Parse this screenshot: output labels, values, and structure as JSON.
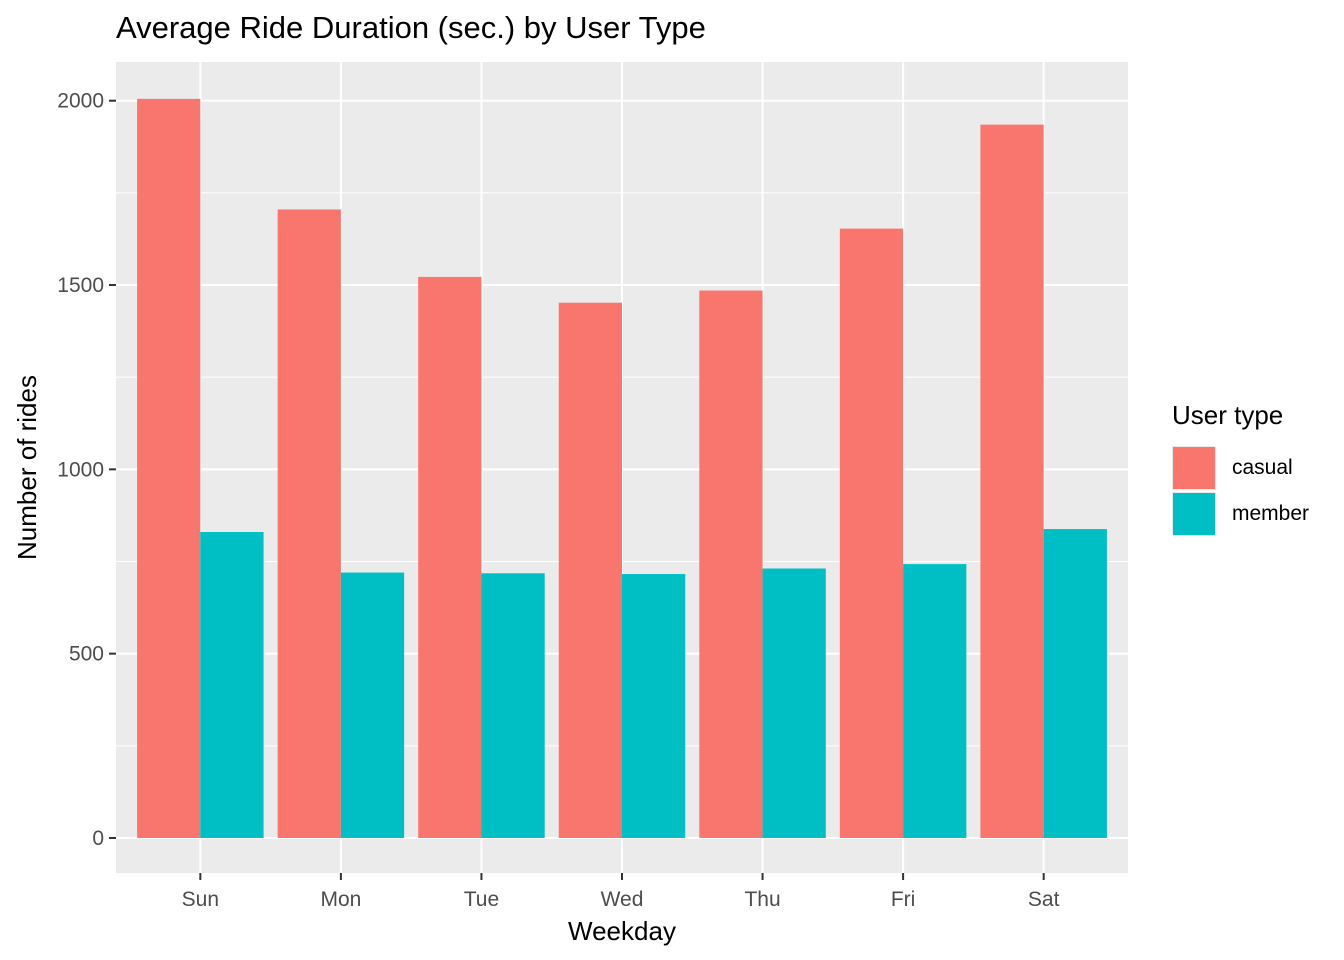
{
  "chart_data": {
    "type": "bar",
    "title": "Average Ride Duration (sec.) by User Type",
    "xlabel": "Weekday",
    "ylabel": "Number of rides",
    "categories": [
      "Sun",
      "Mon",
      "Tue",
      "Wed",
      "Thu",
      "Fri",
      "Sat"
    ],
    "series": [
      {
        "name": "casual",
        "color": "#F8766D",
        "values": [
          2005,
          1705,
          1522,
          1452,
          1485,
          1653,
          1935
        ]
      },
      {
        "name": "member",
        "color": "#00BFC4",
        "values": [
          830,
          720,
          718,
          716,
          731,
          743,
          838
        ]
      }
    ],
    "yticks": [
      0,
      500,
      1000,
      1500,
      2000
    ],
    "ylim": [
      -95,
      2105
    ],
    "grid": true,
    "legend": {
      "title": "User type",
      "position": "right"
    },
    "panel_background": "#EBEBEB",
    "grid_color": "#FFFFFF"
  }
}
